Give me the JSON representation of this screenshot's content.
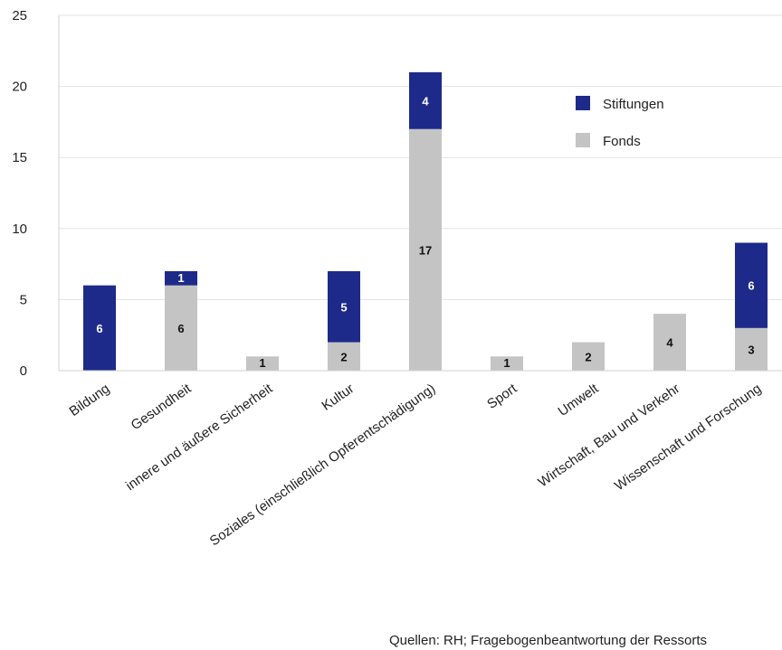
{
  "chart_data": {
    "type": "bar",
    "stacked": true,
    "categories": [
      "Bildung",
      "Gesundheit",
      "innere und äußere Sicherheit",
      "Kultur",
      "Soziales (einschließlich Opferentschädigung)",
      "Sport",
      "Umwelt",
      "Wirtschaft, Bau und Verkehr",
      "Wissenschaft und Forschung"
    ],
    "series": [
      {
        "name": "Fonds",
        "color": "#c4c4c4",
        "label_color": "#111111",
        "values": [
          0,
          6,
          1,
          2,
          17,
          1,
          2,
          4,
          3
        ]
      },
      {
        "name": "Stiftungen",
        "color": "#1e2a8a",
        "label_color": "#ffffff",
        "values": [
          6,
          1,
          0,
          5,
          4,
          0,
          0,
          0,
          6
        ]
      }
    ],
    "legend_order": [
      "Stiftungen",
      "Fonds"
    ],
    "legend_position": "top-right",
    "ylim": [
      0,
      25
    ],
    "yticks": [
      0,
      5,
      10,
      15,
      20,
      25
    ],
    "grid": true,
    "title": "",
    "xlabel": "",
    "ylabel": ""
  },
  "source_note": "Quellen: RH; Fragebogenbeantwortung der Ressorts"
}
